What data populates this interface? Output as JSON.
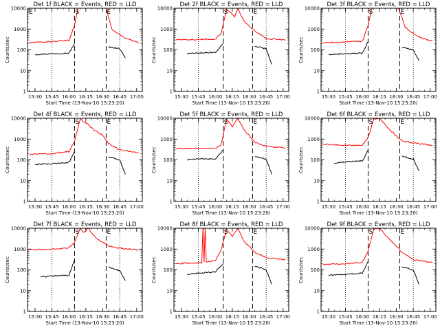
{
  "chart_data": {
    "type": "line",
    "layout": "3x3 grid",
    "y_scale": "log",
    "ylim": [
      1,
      10000
    ],
    "y_tick_labels": [
      "1",
      "10",
      "100",
      "1000",
      "10000"
    ],
    "x_tick_labels": [
      "15:30",
      "15:45",
      "16:00",
      "16:15",
      "16:30",
      "16:45",
      "17:00"
    ],
    "ylabel": "Counts/sec",
    "xlabel": "Start Time (13-Nov-10 15:23:20)",
    "colors": {
      "events": "#000000",
      "lld": "#ff0000"
    },
    "panels": [
      {
        "title": "Det 1f BLACK = Events, RED = LLD",
        "markers": [
          "E",
          "S",
          "E"
        ],
        "series": [
          {
            "name": "Events",
            "segments": [
              {
                "x": [
                  "15:30",
                  "15:45",
                  "16:00",
                  "16:05"
                ],
                "y": [
                  60,
                  65,
                  70,
                  200
                ]
              },
              {
                "x": [
                  "16:35",
                  "16:45",
                  "16:50"
                ],
                "y": [
                  140,
                  110,
                  40
                ]
              }
            ]
          },
          {
            "name": "LLD",
            "segments": [
              {
                "x": [
                  "15:25",
                  "15:45",
                  "16:00",
                  "16:05",
                  "16:08"
                ],
                "y": [
                  220,
                  250,
                  280,
                  1500,
                  10000
                ]
              },
              {
                "x": [
                  "16:33",
                  "16:38",
                  "16:50",
                  "17:02"
                ],
                "y": [
                  10000,
                  1000,
                  350,
                  220
                ]
              }
            ]
          }
        ]
      },
      {
        "title": "Det 2f BLACK = Events, RED = LLD",
        "markers": [
          "S",
          "E"
        ],
        "series": [
          {
            "name": "Events",
            "segments": [
              {
                "x": [
                  "15:35",
                  "15:45",
                  "16:00",
                  "16:07"
                ],
                "y": [
                  65,
                  70,
                  75,
                  200
                ]
              },
              {
                "x": [
                  "16:35",
                  "16:45",
                  "16:50"
                ],
                "y": [
                  150,
                  110,
                  20
                ]
              }
            ]
          },
          {
            "name": "LLD",
            "segments": [
              {
                "x": [
                  "15:25",
                  "16:00",
                  "16:05",
                  "16:10",
                  "16:17",
                  "16:20",
                  "16:25",
                  "16:30",
                  "16:35",
                  "16:45",
                  "17:02"
                ],
                "y": [
                  300,
                  330,
                  600,
                  9000,
                  4000,
                  10000,
                  2500,
                  1400,
                  800,
                  350,
                  300
                ]
              }
            ]
          }
        ]
      },
      {
        "title": "Det 3f BLACK = Events, RED = LLD",
        "markers": [
          "S",
          "E"
        ],
        "series": [
          {
            "name": "Events",
            "segments": [
              {
                "x": [
                  "15:30",
                  "15:45",
                  "16:00",
                  "16:05"
                ],
                "y": [
                  60,
                  65,
                  70,
                  250
                ]
              },
              {
                "x": [
                  "16:35",
                  "16:45",
                  "16:50"
                ],
                "y": [
                  130,
                  100,
                  30
                ]
              }
            ]
          },
          {
            "name": "LLD",
            "segments": [
              {
                "x": [
                  "15:25",
                  "15:45",
                  "16:00",
                  "16:05",
                  "16:08"
                ],
                "y": [
                  220,
                  240,
                  260,
                  1500,
                  10000
                ]
              },
              {
                "x": [
                  "16:32",
                  "16:38",
                  "16:50",
                  "17:02"
                ],
                "y": [
                  10000,
                  1200,
                  400,
                  260
                ]
              }
            ]
          }
        ]
      },
      {
        "title": "Det 4f BLACK = Events, RED = LLD",
        "markers": [
          "S",
          "E"
        ],
        "series": [
          {
            "name": "Events",
            "segments": [
              {
                "x": [
                  "15:30",
                  "15:45",
                  "16:00",
                  "16:05"
                ],
                "y": [
                  60,
                  65,
                  75,
                  250
                ]
              },
              {
                "x": [
                  "16:35",
                  "16:45",
                  "16:50"
                ],
                "y": [
                  140,
                  100,
                  20
                ]
              }
            ]
          },
          {
            "name": "LLD",
            "segments": [
              {
                "x": [
                  "15:25",
                  "15:45",
                  "16:00",
                  "16:05",
                  "16:10",
                  "16:17",
                  "16:22",
                  "16:30",
                  "16:35",
                  "16:45",
                  "17:02"
                ],
                "y": [
                  180,
                  200,
                  250,
                  800,
                  9000,
                  5000,
                  2800,
                  1500,
                  600,
                  300,
                  220
                ]
              }
            ]
          }
        ]
      },
      {
        "title": "Det 5f BLACK = Events, RED = LLD",
        "markers": [
          "S",
          "E"
        ],
        "series": [
          {
            "name": "Events",
            "segments": [
              {
                "x": [
                  "15:35",
                  "15:45",
                  "16:00",
                  "16:07"
                ],
                "y": [
                  100,
                  110,
                  110,
                  300
                ]
              },
              {
                "x": [
                  "16:35",
                  "16:45",
                  "16:50"
                ],
                "y": [
                  140,
                  110,
                  20
                ]
              }
            ]
          },
          {
            "name": "LLD",
            "segments": [
              {
                "x": [
                  "15:25",
                  "16:00",
                  "16:05",
                  "16:10",
                  "16:15",
                  "16:20",
                  "16:25",
                  "16:30",
                  "16:35",
                  "16:45",
                  "17:02"
                ],
                "y": [
                  350,
                  360,
                  500,
                  9000,
                  4000,
                  10000,
                  3000,
                  1500,
                  700,
                  450,
                  380
                ]
              }
            ]
          }
        ]
      },
      {
        "title": "Det 6f BLACK = Events, RED = LLD",
        "markers": [
          "S",
          "E"
        ],
        "series": [
          {
            "name": "Events",
            "segments": [
              {
                "x": [
                  "15:35",
                  "15:45",
                  "16:00",
                  "16:05"
                ],
                "y": [
                  70,
                  80,
                  90,
                  300
                ]
              },
              {
                "x": [
                  "16:35",
                  "16:45",
                  "16:50"
                ],
                "y": [
                  150,
                  110,
                  30
                ]
              }
            ]
          },
          {
            "name": "LLD",
            "segments": [
              {
                "x": [
                  "15:25",
                  "15:45",
                  "16:00",
                  "16:05",
                  "16:10",
                  "16:15",
                  "16:20",
                  "16:25",
                  "16:30",
                  "16:35",
                  "16:45",
                  "17:02"
                ],
                "y": [
                  550,
                  500,
                  500,
                  1200,
                  9000,
                  10000,
                  5000,
                  2500,
                  1400,
                  800,
                  650,
                  500
                ]
              }
            ]
          }
        ]
      },
      {
        "title": "Det 7f BLACK = Events, RED = LLD",
        "markers": [
          "S",
          "E"
        ],
        "series": [
          {
            "name": "Events",
            "segments": [
              {
                "x": [
                  "15:35",
                  "15:45",
                  "16:00",
                  "16:05"
                ],
                "y": [
                  45,
                  50,
                  55,
                  300
                ]
              },
              {
                "x": [
                  "16:35",
                  "16:45",
                  "16:50"
                ],
                "y": [
                  140,
                  90,
                  30
                ]
              }
            ]
          },
          {
            "name": "LLD",
            "segments": [
              {
                "x": [
                  "15:25",
                  "15:45",
                  "16:00",
                  "16:05",
                  "16:10",
                  "16:13",
                  "16:17",
                  "16:20",
                  "16:25",
                  "16:35",
                  "16:45",
                  "17:02"
                ],
                "y": [
                  900,
                  1000,
                  1100,
                  2000,
                  10000,
                  6000,
                  10000,
                  6000,
                  3000,
                  1400,
                  1100,
                  900
                ]
              }
            ]
          }
        ]
      },
      {
        "title": "Det 8f BLACK = Events, RED = LLD",
        "markers": [
          "S",
          "E"
        ],
        "series": [
          {
            "name": "Events",
            "segments": [
              {
                "x": [
                  "15:35",
                  "15:45",
                  "16:00",
                  "16:07"
                ],
                "y": [
                  60,
                  70,
                  80,
                  200
                ]
              },
              {
                "x": [
                  "16:35",
                  "16:45",
                  "16:50"
                ],
                "y": [
                  150,
                  100,
                  20
                ]
              }
            ]
          },
          {
            "name": "LLD",
            "segments": [
              {
                "x": [
                  "15:25",
                  "15:48",
                  "15:49",
                  "15:50",
                  "15:51",
                  "15:52",
                  "15:53",
                  "16:00",
                  "16:05",
                  "16:10",
                  "16:15",
                  "16:20",
                  "16:25",
                  "16:35",
                  "16:45",
                  "17:02"
                ],
                "y": [
                  200,
                  220,
                  10000,
                  220,
                  10000,
                  230,
                  250,
                  280,
                  900,
                  9000,
                  4000,
                  10000,
                  2500,
                  700,
                  400,
                  300
                ]
              }
            ]
          }
        ]
      },
      {
        "title": "Det 9f BLACK = Events, RED = LLD",
        "markers": [
          "S",
          "E"
        ],
        "series": [
          {
            "name": "Events",
            "segments": [
              {
                "x": [
                  "15:30",
                  "15:45",
                  "16:00",
                  "16:05"
                ],
                "y": [
                  55,
                  60,
                  70,
                  250
                ]
              },
              {
                "x": [
                  "16:35",
                  "16:45",
                  "16:50"
                ],
                "y": [
                  140,
                  100,
                  20
                ]
              }
            ]
          },
          {
            "name": "LLD",
            "segments": [
              {
                "x": [
                  "15:25",
                  "15:45",
                  "16:00",
                  "16:05",
                  "16:10",
                  "16:15",
                  "16:20",
                  "16:25",
                  "16:30",
                  "16:35",
                  "16:45",
                  "17:02"
                ],
                "y": [
                  180,
                  200,
                  230,
                  800,
                  9000,
                  10000,
                  5000,
                  2500,
                  1400,
                  700,
                  300,
                  220
                ]
              }
            ]
          }
        ]
      }
    ]
  }
}
